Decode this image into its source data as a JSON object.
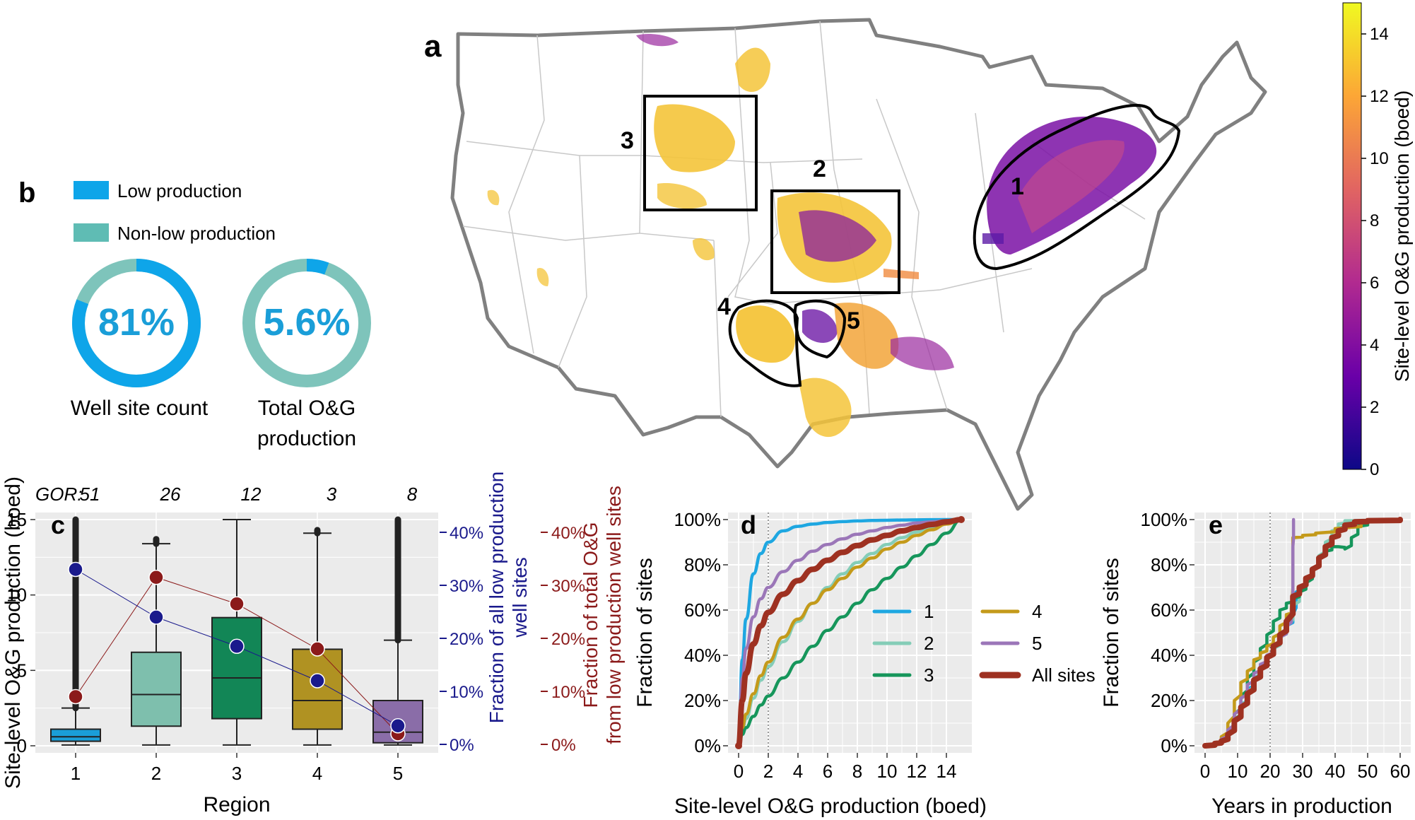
{
  "colorbar": {
    "title": "Site-level O&G production (boed)",
    "ticks": [
      "0",
      "2",
      "4",
      "6",
      "8",
      "10",
      "12",
      "14"
    ],
    "tick_values": [
      0,
      2,
      4,
      6,
      8,
      10,
      12,
      14
    ],
    "max": 15,
    "colors": [
      "#0d0887",
      "#6a00a8",
      "#b12a90",
      "#e16462",
      "#fca636",
      "#f0f921"
    ]
  },
  "panel_a": {
    "label": "a",
    "region_labels": [
      "1",
      "2",
      "3",
      "4",
      "5"
    ]
  },
  "panel_b": {
    "label": "b",
    "legend": [
      {
        "label": "Low production",
        "color": "#0ea5e9"
      },
      {
        "label": "Non-low production",
        "color": "#5fbcb4"
      }
    ],
    "donuts": [
      {
        "value_text": "81%",
        "fraction": 0.81,
        "caption": [
          "Well site count"
        ]
      },
      {
        "value_text": "5.6%",
        "fraction": 0.056,
        "caption": [
          "Total O&G",
          "production"
        ]
      }
    ]
  },
  "chart_data": [
    {
      "panel": "c",
      "type": "box",
      "title": "",
      "xlabel": "Region",
      "ylabel": "Site-level O&G production (boed)",
      "categories": [
        "1",
        "2",
        "3",
        "4",
        "5"
      ],
      "ylim": [
        0,
        15
      ],
      "yticks": [
        "0",
        "5",
        "10",
        "15"
      ],
      "gor_label": "GOR:",
      "gor": [
        "51",
        "26",
        "12",
        "3",
        "8"
      ],
      "colors": [
        "#1a9ed8",
        "#7ebfad",
        "#128656",
        "#b09222",
        "#8a6da8"
      ],
      "boxes": [
        {
          "whislo": 0.05,
          "q1": 0.3,
          "med": 0.6,
          "q3": 1.1,
          "whishi": 2.5,
          "outlier_to": 15
        },
        {
          "whislo": 0.05,
          "q1": 1.3,
          "med": 3.4,
          "q3": 6.2,
          "whishi": 13.4,
          "outlier_to": 13.7
        },
        {
          "whislo": 0.05,
          "q1": 1.8,
          "med": 4.5,
          "q3": 8.5,
          "whishi": 15,
          "outlier_to": 15
        },
        {
          "whislo": 0.05,
          "q1": 1.1,
          "med": 3.0,
          "q3": 6.4,
          "whishi": 14.1,
          "outlier_to": 14.3
        },
        {
          "whislo": 0.05,
          "q1": 0.2,
          "med": 0.9,
          "q3": 3.0,
          "whishi": 7.0,
          "outlier_to": 15
        }
      ],
      "secondary_axes": [
        {
          "label": [
            "Fraction of all low production",
            "well sites"
          ],
          "ticks": [
            "0%",
            "10%",
            "20%",
            "30%",
            "40%"
          ],
          "range": [
            0,
            40
          ],
          "color": "#1a1a8c",
          "values": [
            33,
            24,
            18.5,
            12,
            3.5
          ]
        },
        {
          "label": [
            "Fraction of total O&G",
            "from low production well sites"
          ],
          "ticks": [
            "0%",
            "10%",
            "20%",
            "30%",
            "40%"
          ],
          "range": [
            0,
            40
          ],
          "color": "#8b1a1a",
          "values": [
            9,
            31.5,
            26.5,
            18,
            2
          ]
        }
      ]
    },
    {
      "panel": "d",
      "type": "line",
      "title": "",
      "xlabel": "Site-level O&G production (boed)",
      "ylabel": "Fraction of sites",
      "xlim": [
        0,
        15
      ],
      "ylim": [
        0,
        100
      ],
      "xticks": [
        "0",
        "2",
        "4",
        "6",
        "8",
        "10",
        "12",
        "14"
      ],
      "yticks": [
        "0%",
        "20%",
        "40%",
        "60%",
        "80%",
        "100%"
      ],
      "vline_x": 2,
      "x": [
        0,
        0.25,
        0.5,
        1,
        1.5,
        2,
        3,
        4,
        5,
        6,
        7,
        8,
        9,
        10,
        11,
        12,
        13,
        14,
        15
      ],
      "series": [
        {
          "name": "1",
          "color": "#1ea7e1",
          "values": [
            0,
            38,
            56,
            76,
            85,
            90,
            95,
            97,
            98,
            98.7,
            99.1,
            99.4,
            99.6,
            99.7,
            99.8,
            99.9,
            99.95,
            100,
            100
          ]
        },
        {
          "name": "2",
          "color": "#84cdb7",
          "values": [
            0,
            7,
            12,
            21,
            29,
            35,
            46,
            55,
            63,
            70,
            76,
            81,
            85,
            89,
            92,
            94.5,
            96.5,
            98.5,
            100
          ]
        },
        {
          "name": "3",
          "color": "#16965b",
          "values": [
            0,
            5,
            8,
            13,
            18,
            22,
            30,
            37,
            44,
            51,
            57,
            63,
            69,
            74,
            79,
            84,
            89,
            94,
            100
          ]
        },
        {
          "name": "4",
          "color": "#c49a1a",
          "values": [
            0,
            8,
            14,
            23,
            31,
            37,
            48,
            56,
            63,
            69,
            74,
            79,
            83,
            87,
            90,
            93,
            95.5,
            98,
            100
          ]
        },
        {
          "name": "5",
          "color": "#9b76b8",
          "values": [
            0,
            30,
            43,
            57,
            65,
            70,
            77,
            82,
            86,
            89,
            91.5,
            93.5,
            95,
            96.5,
            97.5,
            98.5,
            99,
            99.5,
            100
          ]
        },
        {
          "name": "All sites",
          "color": "#9e3121",
          "values": [
            0,
            20,
            32,
            45,
            53,
            59,
            67,
            73,
            78,
            82,
            85.5,
            88.5,
            91,
            93,
            95,
            96.5,
            97.8,
            99,
            100
          ]
        }
      ]
    },
    {
      "panel": "e",
      "type": "line",
      "title": "",
      "xlabel": "Years in production",
      "ylabel": "Fraction of sites",
      "xlim": [
        0,
        60
      ],
      "ylim": [
        0,
        100
      ],
      "xticks": [
        "0",
        "10",
        "20",
        "30",
        "40",
        "50",
        "60"
      ],
      "yticks": [
        "0%",
        "20%",
        "40%",
        "60%",
        "80%",
        "100%"
      ],
      "vline_x": 20,
      "series": [
        {
          "name": "1",
          "color": "#1ea7e1",
          "x": [
            0,
            3,
            5,
            7,
            9,
            11,
            13,
            15,
            17,
            19,
            21,
            23,
            25,
            27,
            28,
            29,
            31,
            33,
            35,
            37,
            39,
            41,
            43,
            46,
            60
          ],
          "values": [
            0,
            1,
            2,
            5,
            11,
            18,
            25,
            30,
            35,
            39,
            43,
            48,
            53,
            58,
            68,
            70,
            73,
            78,
            83,
            88,
            92,
            96,
            99,
            99.5,
            100
          ]
        },
        {
          "name": "2",
          "color": "#84cdb7",
          "x": [
            0,
            3,
            5,
            7,
            9,
            11,
            13,
            15,
            17,
            19,
            21,
            23,
            25,
            27,
            29,
            31,
            33,
            35,
            37,
            39,
            41,
            43,
            60
          ],
          "values": [
            0,
            1,
            3,
            6,
            12,
            18,
            24,
            30,
            34,
            39,
            43,
            48,
            53,
            62,
            68,
            72,
            78,
            84,
            90,
            95,
            98,
            99.5,
            100
          ]
        },
        {
          "name": "3",
          "color": "#16965b",
          "x": [
            0,
            3,
            5,
            7,
            9,
            11,
            13,
            15,
            17,
            19,
            21,
            23,
            25,
            27,
            29,
            31,
            33,
            35,
            37,
            39,
            41,
            43,
            45,
            47,
            50,
            60
          ],
          "values": [
            0,
            1,
            3,
            7,
            14,
            22,
            30,
            37,
            43,
            49,
            55,
            60,
            63,
            65,
            68,
            72,
            78,
            83,
            86,
            88,
            88,
            87,
            92,
            97,
            99,
            100
          ]
        },
        {
          "name": "4",
          "color": "#c49a1a",
          "x": [
            0,
            3,
            5,
            7,
            9,
            11,
            13,
            15,
            17,
            19,
            21,
            23,
            25,
            26.5,
            27,
            30,
            34,
            40,
            48,
            60
          ],
          "values": [
            0,
            1,
            4,
            10,
            20,
            28,
            33,
            38,
            41,
            44,
            48,
            53,
            58,
            60,
            92,
            93,
            94,
            96,
            99,
            100
          ]
        },
        {
          "name": "5",
          "color": "#9b76b8",
          "x": [
            0,
            3,
            5,
            7,
            9,
            11,
            13,
            15,
            17,
            19,
            21,
            23,
            25,
            26.5,
            27,
            27.2
          ],
          "values": [
            0,
            1,
            3,
            7,
            14,
            21,
            27,
            32,
            36,
            40,
            44,
            48,
            53,
            58,
            88,
            100
          ]
        },
        {
          "name": "All sites",
          "color": "#9e3121",
          "x": [
            0,
            3,
            5,
            7,
            9,
            11,
            13,
            15,
            17,
            19,
            21,
            23,
            25,
            27,
            29,
            31,
            33,
            35,
            37,
            39,
            41,
            43,
            46,
            50,
            60
          ],
          "values": [
            0,
            1,
            2,
            5,
            11,
            17,
            23,
            29,
            34,
            39,
            44,
            49,
            55,
            66,
            70,
            74,
            78,
            83,
            88,
            92,
            95,
            97.5,
            99,
            99.5,
            100
          ]
        }
      ]
    }
  ]
}
